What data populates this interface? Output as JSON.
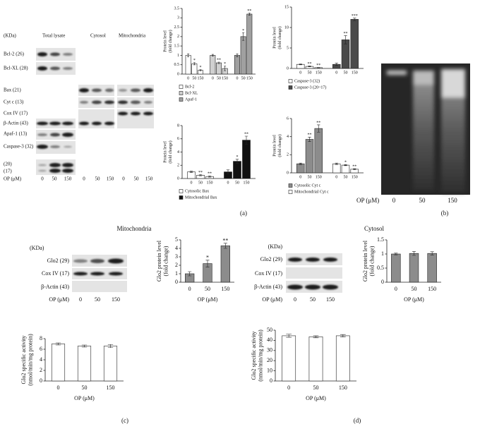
{
  "panels": {
    "a": "(a)",
    "b": "(b)",
    "c": "(c)",
    "d": "(d)"
  },
  "blot_a": {
    "header": [
      "(KDa)",
      "Total lysate",
      "Cytosol",
      "Mitochondria"
    ],
    "rows": [
      "Bcl-2 (26)",
      "Bcl-XL (28)",
      "Bax (21)",
      "Cyt c (13)",
      "Cox IV (17)",
      "β-Actin (43)",
      "Apaf-1 (13)",
      "Caspase-3 (32)",
      "(20)",
      "(17)"
    ],
    "dose_label": "OP (μM)",
    "doses": [
      "0",
      "50",
      "150"
    ]
  },
  "gel_b": {
    "dose_label": "OP (μM)",
    "doses": [
      "0",
      "50",
      "150"
    ]
  },
  "blot_c": {
    "title": "Mitochondria",
    "unit": "(KDa)",
    "rows": [
      "Glo2 (29)",
      "Cox IV (17)",
      "β-Actin (43)"
    ],
    "dose_label": "OP (μM)",
    "doses": [
      "0",
      "50",
      "150"
    ]
  },
  "blot_d": {
    "title": "Cytosol",
    "unit": "(KDa)",
    "rows": [
      "Glo2 (29)",
      "Cox IV (17)",
      "β-Actin (43)"
    ],
    "dose_label": "OP (μM)",
    "doses": [
      "0",
      "50",
      "150"
    ]
  },
  "chart_data": [
    {
      "type": "bar",
      "ylabel": [
        "Protein level",
        "(fold change)"
      ],
      "categories": [
        "0",
        "50",
        "150"
      ],
      "ylim": [
        0,
        3.5
      ],
      "yticks": [
        0,
        0.5,
        1,
        1.5,
        2,
        2.5,
        3,
        3.5
      ],
      "legend": true,
      "series": [
        {
          "name": "Bcl-2",
          "color": "#ffffff",
          "values": [
            1.0,
            0.55,
            0.2
          ],
          "errors": [
            0.08,
            0.06,
            0.04
          ],
          "annotations": [
            null,
            "*",
            "*"
          ]
        },
        {
          "name": "Bcl-XL",
          "color": "#d0d0d0",
          "values": [
            1.0,
            0.6,
            0.3
          ],
          "errors": [
            0.05,
            0.04,
            0.12
          ],
          "annotations": [
            null,
            "**",
            "*"
          ]
        },
        {
          "name": "Apaf-1",
          "color": "#a0a0a0",
          "values": [
            1.0,
            2.0,
            3.2
          ],
          "errors": [
            0.08,
            0.2,
            0.06
          ],
          "annotations": [
            null,
            "*",
            "**"
          ]
        }
      ]
    },
    {
      "type": "bar",
      "ylabel": [
        "Protein level",
        "(fold change)"
      ],
      "categories": [
        "0",
        "50",
        "150"
      ],
      "ylim": [
        0,
        15
      ],
      "yticks": [
        0,
        5,
        10,
        15
      ],
      "legend": true,
      "series": [
        {
          "name": "Caspase-3 (32)",
          "color": "#ffffff",
          "values": [
            1.0,
            0.5,
            0.2
          ],
          "errors": [
            0.1,
            0.1,
            0.05
          ],
          "annotations": [
            null,
            "**",
            "**"
          ]
        },
        {
          "name": "Caspase-3 (20~17)",
          "color": "#4a4a4a",
          "values": [
            1.0,
            7.0,
            12.0
          ],
          "errors": [
            0.3,
            1.0,
            0.3
          ],
          "annotations": [
            null,
            "**",
            "***"
          ]
        }
      ]
    },
    {
      "type": "bar",
      "ylabel": [
        "Protein level",
        "(fold change)"
      ],
      "categories": [
        "0",
        "50",
        "150"
      ],
      "ylim": [
        0,
        8
      ],
      "yticks": [
        0,
        2,
        4,
        6,
        8
      ],
      "legend": true,
      "series": [
        {
          "name": "Cytosolic Bax",
          "color": "#ffffff",
          "values": [
            1.0,
            0.5,
            0.3
          ],
          "errors": [
            0.1,
            0.1,
            0.1
          ],
          "annotations": [
            null,
            "**",
            "**"
          ]
        },
        {
          "name": "Mitochondrial Bax",
          "color": "#111111",
          "values": [
            1.0,
            2.6,
            5.8
          ],
          "errors": [
            0.3,
            0.3,
            0.6
          ],
          "annotations": [
            null,
            "*",
            "**"
          ]
        }
      ]
    },
    {
      "type": "bar",
      "ylabel": [
        "Protein level",
        "(fold change)"
      ],
      "categories": [
        "0",
        "50",
        "150"
      ],
      "ylim": [
        0,
        6
      ],
      "yticks": [
        0,
        2,
        4,
        6
      ],
      "legend": true,
      "series": [
        {
          "name": "Cytosolic Cyt c",
          "color": "#8c8c8c",
          "values": [
            1.0,
            3.7,
            4.9
          ],
          "errors": [
            0.08,
            0.25,
            0.4
          ],
          "annotations": [
            null,
            "**",
            "**"
          ]
        },
        {
          "name": "Mitochondrial Cyt c",
          "color": "#ffffff",
          "values": [
            1.0,
            0.85,
            0.4
          ],
          "errors": [
            0.08,
            0.06,
            0.06
          ],
          "annotations": [
            null,
            "*",
            "**"
          ]
        }
      ]
    },
    {
      "type": "bar",
      "ylabel": [
        "Glo2 protein level",
        "(fold change)"
      ],
      "xlabel": "OP (μM)",
      "categories": [
        "0",
        "50",
        "150"
      ],
      "ylim": [
        0,
        5
      ],
      "yticks": [
        0,
        1,
        2,
        3,
        4,
        5
      ],
      "series": [
        {
          "color": "#8c8c8c",
          "values": [
            1.0,
            2.2,
            4.3
          ],
          "errors": [
            0.25,
            0.4,
            0.3
          ],
          "annotations": [
            null,
            "*",
            "**"
          ]
        }
      ]
    },
    {
      "type": "bar",
      "ylabel": [
        "Glo2 specific activity",
        "(nmol/min/mg protein)"
      ],
      "xlabel": "OP (μM)",
      "categories": [
        "0",
        "50",
        "150"
      ],
      "ylim": [
        0,
        8
      ],
      "yticks": [
        0,
        2,
        4,
        6,
        8
      ],
      "series": [
        {
          "color": "#ffffff",
          "values": [
            7.0,
            6.6,
            6.6
          ],
          "errors": [
            0.2,
            0.2,
            0.3
          ]
        }
      ]
    },
    {
      "type": "bar",
      "ylabel": [
        "Glo2 protein level",
        "(fold change)"
      ],
      "xlabel": "OP (μM)",
      "categories": [
        "0",
        "50",
        "150"
      ],
      "ylim": [
        0,
        1.5
      ],
      "yticks": [
        0,
        0.5,
        1,
        1.5
      ],
      "series": [
        {
          "color": "#8c8c8c",
          "values": [
            1.0,
            1.02,
            1.02
          ],
          "errors": [
            0.03,
            0.07,
            0.06
          ]
        }
      ]
    },
    {
      "type": "bar",
      "ylabel": [
        "Glo2 specific activity",
        "(nmol/min/mg protein)"
      ],
      "xlabel": "OP (μM)",
      "categories": [
        "0",
        "50",
        "150"
      ],
      "ylim": [
        0,
        50
      ],
      "yticks": [
        0,
        10,
        20,
        30,
        40,
        50
      ],
      "series": [
        {
          "color": "#ffffff",
          "values": [
            44.5,
            43.5,
            44.5
          ],
          "errors": [
            1.5,
            1.0,
            1.2
          ]
        }
      ]
    }
  ]
}
